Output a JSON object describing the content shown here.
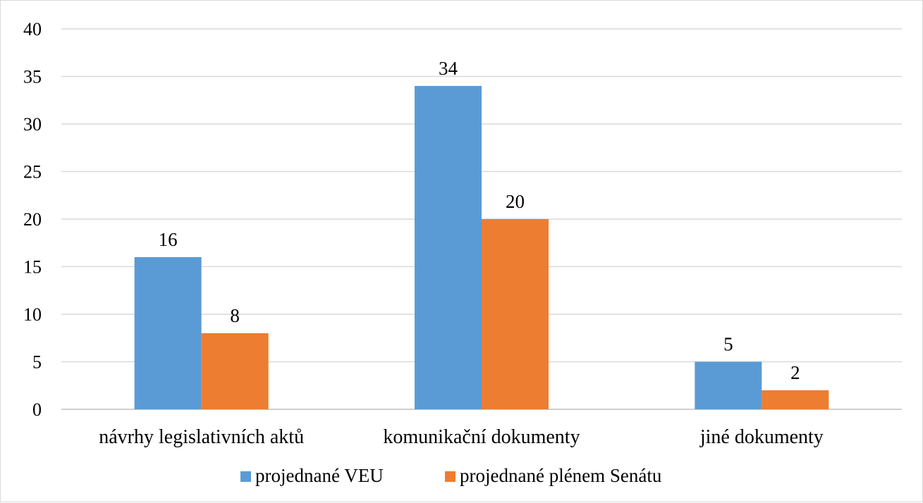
{
  "chart_data": {
    "type": "bar",
    "categories": [
      "návrhy legislativních aktů",
      "komunikační dokumenty",
      "jiné dokumenty"
    ],
    "series": [
      {
        "name": "projednané VEU",
        "values": [
          16,
          34,
          5
        ],
        "color": "#5b9bd5"
      },
      {
        "name": "projednané plénem Senátu",
        "values": [
          8,
          20,
          2
        ],
        "color": "#ed7d31"
      }
    ],
    "ylim": [
      0,
      40
    ],
    "yticks": [
      "0",
      "5",
      "10",
      "15",
      "20",
      "25",
      "30",
      "35",
      "40"
    ],
    "grid": true,
    "legend": "bottom",
    "data_labels": true
  }
}
